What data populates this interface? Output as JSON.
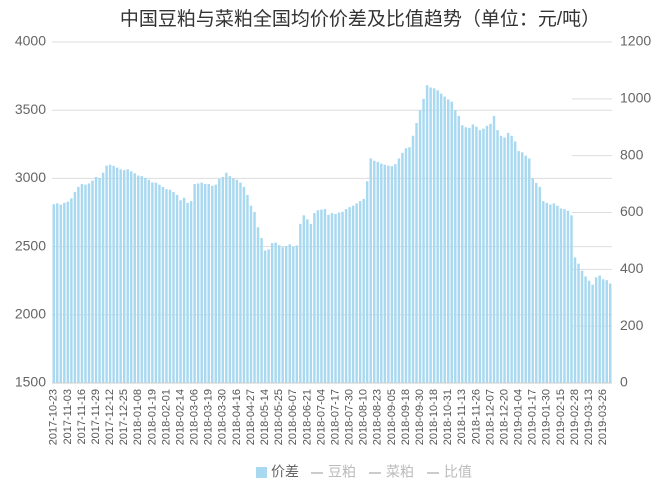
{
  "chart_data": {
    "type": "bar",
    "title": "中国豆粕与菜粕全国均价价差及比值趋势（单位：元/吨）",
    "categories": [
      "2017-10-23",
      null,
      null,
      null,
      "2017-11-03",
      null,
      null,
      null,
      "2017-11-16",
      null,
      null,
      null,
      "2017-11-29",
      null,
      null,
      null,
      "2017-12-12",
      null,
      null,
      null,
      "2017-12-25",
      null,
      null,
      null,
      "2018-01-08",
      null,
      null,
      null,
      "2018-01-19",
      null,
      null,
      null,
      "2018-02-01",
      null,
      null,
      null,
      "2018-02-14",
      null,
      null,
      null,
      "2018-03-06",
      null,
      null,
      null,
      "2018-03-19",
      null,
      null,
      null,
      "2018-03-30",
      null,
      null,
      null,
      "2018-04-16",
      null,
      null,
      null,
      "2018-04-27",
      null,
      null,
      null,
      "2018-05-14",
      null,
      null,
      null,
      "2018-05-25",
      null,
      null,
      null,
      "2018-06-07",
      null,
      null,
      null,
      "2018-06-21",
      null,
      null,
      null,
      "2018-07-04",
      null,
      null,
      null,
      "2018-07-17",
      null,
      null,
      null,
      "2018-07-30",
      null,
      null,
      null,
      "2018-08-10",
      null,
      null,
      null,
      "2018-08-23",
      null,
      null,
      null,
      "2018-09-05",
      null,
      null,
      null,
      "2018-09-18",
      null,
      null,
      null,
      "2018-09-30",
      null,
      null,
      null,
      "2018-10-18",
      null,
      null,
      null,
      "2018-10-31",
      null,
      null,
      null,
      "2018-11-13",
      null,
      null,
      null,
      "2018-11-26",
      null,
      null,
      null,
      "2018-12-07",
      null,
      null,
      null,
      "2018-12-20",
      null,
      null,
      null,
      "2019-01-04",
      null,
      null,
      null,
      "2019-01-17",
      null,
      null,
      null,
      "2019-01-30",
      null,
      null,
      null,
      "2019-02-15",
      null,
      null,
      null,
      "2019-02-28",
      null,
      null,
      null,
      "2019-03-13",
      null,
      null,
      null,
      "2019-03-26",
      null,
      null
    ],
    "series": [
      {
        "name": "价差",
        "color": "#a9d9f0",
        "axis": "y2",
        "values": [
          629,
          632,
          628,
          634,
          638,
          650,
          672,
          690,
          700,
          698,
          702,
          712,
          725,
          722,
          740,
          765,
          768,
          764,
          758,
          752,
          749,
          752,
          745,
          738,
          730,
          728,
          722,
          715,
          706,
          705,
          698,
          690,
          682,
          680,
          672,
          662,
          643,
          652,
          634,
          640,
          700,
          702,
          705,
          700,
          700,
          694,
          698,
          718,
          725,
          740,
          728,
          720,
          715,
          705,
          690,
          662,
          624,
          602,
          548,
          510,
          466,
          470,
          492,
          494,
          485,
          478,
          482,
          488,
          480,
          484,
          560,
          590,
          576,
          560,
          598,
          608,
          610,
          612,
          592,
          598,
          595,
          600,
          602,
          612,
          619,
          624,
          632,
          640,
          648,
          710,
          790,
          782,
          778,
          772,
          768,
          765,
          763,
          770,
          790,
          810,
          826,
          830,
          870,
          915,
          960,
          1000,
          1048,
          1040,
          1037,
          1030,
          1018,
          1008,
          998,
          990,
          960,
          940,
          907,
          900,
          898,
          910,
          902,
          890,
          895,
          905,
          912,
          940,
          890,
          870,
          864,
          880,
          870,
          850,
          816,
          812,
          800,
          790,
          720,
          704,
          690,
          640,
          634,
          628,
          632,
          624,
          614,
          612,
          606,
          590,
          442,
          420,
          395,
          375,
          360,
          346,
          372,
          378,
          365,
          362,
          350
        ]
      }
    ],
    "inactive_legend": [
      "豆粕",
      "菜粕",
      "比值"
    ],
    "ylim": [
      1500,
      4000
    ],
    "yticks": [
      1500,
      2000,
      2500,
      3000,
      3500,
      4000
    ],
    "y2lim": [
      0,
      1200
    ],
    "y2ticks": [
      0,
      200,
      400,
      600,
      800,
      1000,
      1200
    ],
    "grid": true
  }
}
